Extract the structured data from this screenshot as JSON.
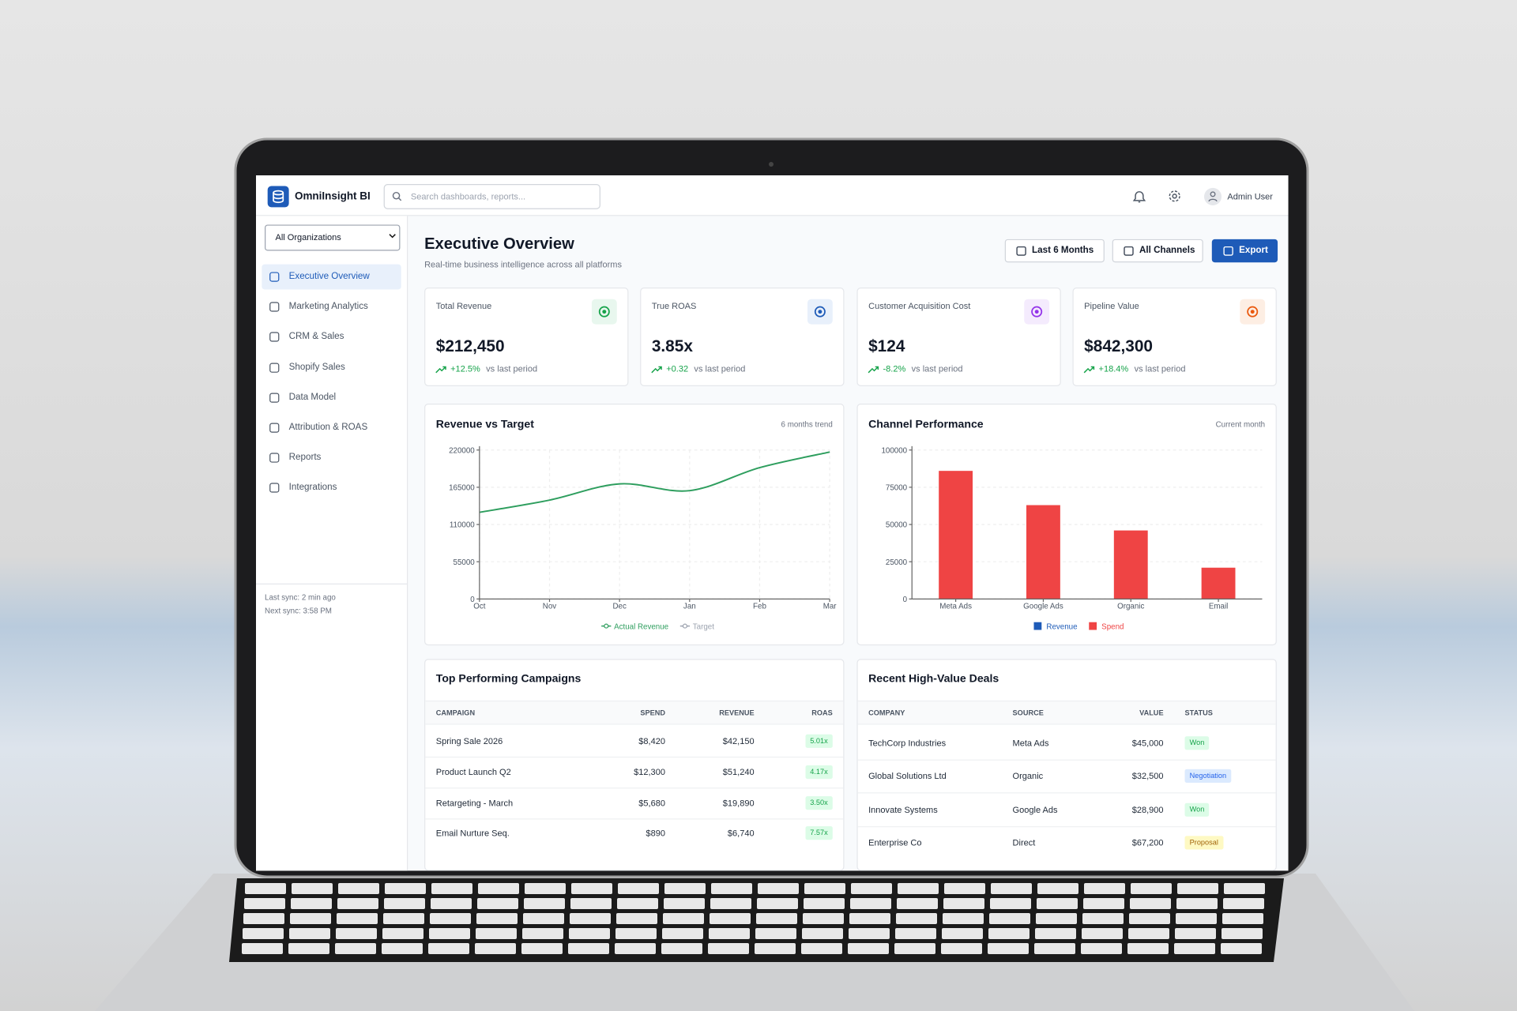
{
  "app": {
    "name": "OmniInsight BI",
    "search_placeholder": "Search dashboards, reports...",
    "user": "Admin User"
  },
  "sidebar": {
    "org_select": "All Organizations",
    "nav": [
      "Executive Overview",
      "Marketing Analytics",
      "CRM & Sales",
      "Shopify Sales",
      "Data Model",
      "Attribution & ROAS",
      "Reports",
      "Integrations"
    ],
    "sync": [
      "Last sync: 2 min ago",
      "Next sync: 3:58 PM"
    ]
  },
  "header": {
    "title": "Executive Overview",
    "subtitle": "Real-time business intelligence across all platforms",
    "buttons": [
      "Last 6 Months",
      "All Channels",
      "Export"
    ]
  },
  "kpis": [
    {
      "label": "Total Revenue",
      "value": "$212,450",
      "change": "+12.5%",
      "note": "vs last period"
    },
    {
      "label": "True ROAS",
      "value": "3.85x",
      "change": "+0.32",
      "note": "vs last period"
    },
    {
      "label": "Customer Acquisition Cost",
      "value": "$124",
      "change": "-8.2%",
      "note": "vs last period"
    },
    {
      "label": "Pipeline Value",
      "value": "$842,300",
      "change": "+18.4%",
      "note": "vs last period"
    }
  ],
  "chart_data": [
    {
      "type": "line",
      "title": "Revenue vs Target",
      "subtitle": "6 months trend",
      "categories": [
        "Oct",
        "Nov",
        "Dec",
        "Jan",
        "Feb",
        "Mar"
      ],
      "series": [
        {
          "name": "Actual Revenue",
          "color": "#2e9e5e",
          "values": [
            128000,
            146000,
            170000,
            160000,
            194000,
            217000
          ]
        },
        {
          "name": "Target",
          "color": "#9ca3af",
          "values": [
            null,
            null,
            null,
            null,
            null,
            null
          ]
        }
      ],
      "ylim": [
        0,
        220000
      ],
      "yticks": [
        0,
        55000,
        110000,
        165000,
        220000
      ],
      "grid": true
    },
    {
      "type": "bar",
      "title": "Channel Performance",
      "subtitle": "Current month",
      "categories": [
        "Meta Ads",
        "Google Ads",
        "Organic",
        "Email"
      ],
      "series": [
        {
          "name": "Revenue",
          "color": "#1e5bb8",
          "values": [
            null,
            null,
            null,
            null
          ]
        },
        {
          "name": "Spend",
          "color": "#ef4444",
          "values": [
            86000,
            63000,
            46000,
            21000
          ]
        }
      ],
      "ylim": [
        0,
        100000
      ],
      "yticks": [
        0,
        25000,
        50000,
        75000,
        100000
      ],
      "grid": true
    }
  ],
  "campaigns": {
    "title": "Top Performing Campaigns",
    "columns": [
      "CAMPAIGN",
      "SPEND",
      "REVENUE",
      "ROAS"
    ],
    "rows": [
      [
        "Spring Sale 2026",
        "$8,420",
        "$42,150",
        "5.01x"
      ],
      [
        "Product Launch Q2",
        "$12,300",
        "$51,240",
        "4.17x"
      ],
      [
        "Retargeting - March",
        "$5,680",
        "$19,890",
        "3.50x"
      ],
      [
        "Email Nurture Seq.",
        "$890",
        "$6,740",
        "7.57x"
      ]
    ]
  },
  "deals": {
    "title": "Recent High-Value Deals",
    "columns": [
      "COMPANY",
      "SOURCE",
      "VALUE",
      "STATUS"
    ],
    "rows": [
      [
        "TechCorp Industries",
        "Meta Ads",
        "$45,000",
        "Won"
      ],
      [
        "Global Solutions Ltd",
        "Organic",
        "$32,500",
        "Negotiation"
      ],
      [
        "Innovate Systems",
        "Google Ads",
        "$28,900",
        "Won"
      ],
      [
        "Enterprise Co",
        "Direct",
        "$67,200",
        "Proposal"
      ]
    ]
  }
}
